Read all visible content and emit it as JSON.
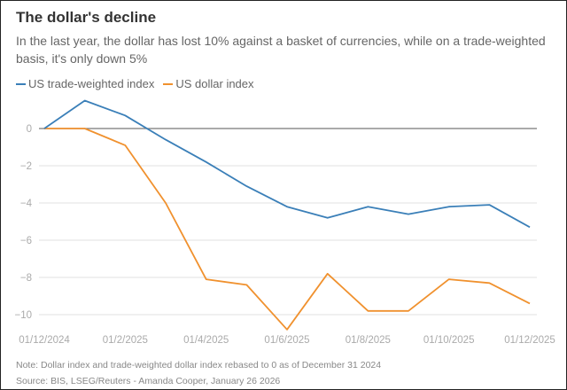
{
  "header": {
    "title": "The dollar's decline",
    "subtitle": "In the last year, the dollar has lost 10% against a basket of currencies, while on a trade-weighted basis, it's only down 5%"
  },
  "footer": {
    "note": "Note: Dollar index and trade-weighted dollar index rebased to 0 as of December 31 2024",
    "source": "Source: BIS, LSEG/Reuters - Amanda Cooper, January 26 2026"
  },
  "chart_data": {
    "type": "line",
    "title": "The dollar's decline",
    "xlabel": "",
    "ylabel": "",
    "x": [
      "2024-12",
      "2025-01",
      "2025-02",
      "2025-03",
      "2025-04",
      "2025-05",
      "2025-06",
      "2025-07",
      "2025-08",
      "2025-09",
      "2025-10",
      "2025-11",
      "2025-12"
    ],
    "x_tick_labels": [
      "01/12/2024",
      "01/2/2025",
      "01/4/2025",
      "01/6/2025",
      "01/8/2025",
      "01/10/2025",
      "01/12/2025"
    ],
    "x_tick_indices": [
      0,
      2,
      4,
      6,
      8,
      10,
      12
    ],
    "y_ticks": [
      0,
      -2,
      -4,
      -6,
      -8,
      -10
    ],
    "y_tick_labels": [
      "0",
      "−2",
      "−4",
      "−6",
      "−8",
      "−10"
    ],
    "ylim": [
      -11,
      2
    ],
    "grid": true,
    "legend_position": "top-left",
    "series": [
      {
        "name": "US trade-weighted index",
        "color": "#3a7fb8",
        "values": [
          0,
          1.5,
          0.7,
          -0.6,
          -1.8,
          -3.1,
          -4.2,
          -4.8,
          -4.2,
          -4.6,
          -4.2,
          -4.1,
          -5.3
        ]
      },
      {
        "name": "US dollar index",
        "color": "#f0912e",
        "values": [
          0,
          0,
          -0.9,
          -4.0,
          -8.1,
          -8.4,
          -10.8,
          -7.8,
          -9.8,
          -9.8,
          -8.1,
          -8.3,
          -9.4
        ]
      }
    ]
  }
}
